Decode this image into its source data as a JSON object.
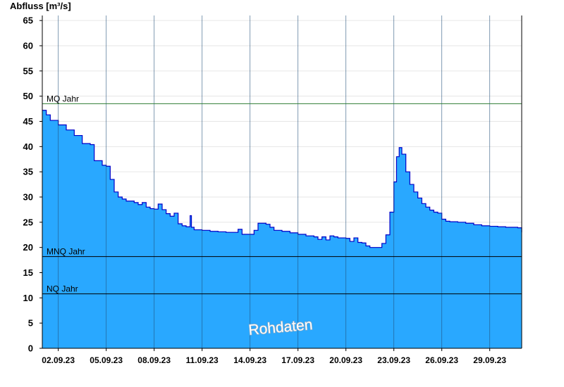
{
  "chart_data": {
    "type": "area",
    "ylabel": "Abfluss [m³/s]",
    "xlabel": "",
    "ylim": [
      0,
      66
    ],
    "yticks": [
      0,
      5,
      10,
      15,
      20,
      25,
      30,
      35,
      40,
      45,
      50,
      55,
      60,
      65
    ],
    "xlim": [
      "2023-09-01",
      "2023-10-01"
    ],
    "xticks": [
      "02.09.23",
      "05.09.23",
      "08.09.23",
      "11.09.23",
      "14.09.23",
      "17.09.23",
      "20.09.23",
      "23.09.23",
      "26.09.23",
      "29.09.23"
    ],
    "grid": true,
    "fill_color": "#29a8ff",
    "line_color": "#0000c8",
    "series": [
      {
        "values": [
          [
            "2023-09-01",
            47.2
          ],
          [
            "2023-09-01T06:00",
            46.3
          ],
          [
            "2023-09-01T12:00",
            45.2
          ],
          [
            "2023-09-02",
            44.3
          ],
          [
            "2023-09-02T12:00",
            43.3
          ],
          [
            "2023-09-03",
            42.2
          ],
          [
            "2023-09-03T12:00",
            40.6
          ],
          [
            "2023-09-04",
            40.4
          ],
          [
            "2023-09-04T06:00",
            37.2
          ],
          [
            "2023-09-04T18:00",
            36.3
          ],
          [
            "2023-09-05",
            36.1
          ],
          [
            "2023-09-05T06:00",
            33.5
          ],
          [
            "2023-09-05T12:00",
            31.0
          ],
          [
            "2023-09-05T18:00",
            30.0
          ],
          [
            "2023-09-06",
            29.6
          ],
          [
            "2023-09-06T06:00",
            29.2
          ],
          [
            "2023-09-06T12:00",
            29.2
          ],
          [
            "2023-09-06T18:00",
            28.9
          ],
          [
            "2023-09-07",
            28.5
          ],
          [
            "2023-09-07T06:00",
            28.9
          ],
          [
            "2023-09-07T12:00",
            28.0
          ],
          [
            "2023-09-07T18:00",
            27.7
          ],
          [
            "2023-09-08",
            27.6
          ],
          [
            "2023-09-08T06:00",
            28.6
          ],
          [
            "2023-09-08T12:00",
            27.5
          ],
          [
            "2023-09-08T18:00",
            26.7
          ],
          [
            "2023-09-09",
            26.2
          ],
          [
            "2023-09-09T06:00",
            26.8
          ],
          [
            "2023-09-09T12:00",
            24.7
          ],
          [
            "2023-09-09T18:00",
            24.3
          ],
          [
            "2023-09-10",
            24.1
          ],
          [
            "2023-09-10T06:00",
            26.3
          ],
          [
            "2023-09-10T08:00",
            24.0
          ],
          [
            "2023-09-10T12:00",
            23.5
          ],
          [
            "2023-09-11",
            23.4
          ],
          [
            "2023-09-11T12:00",
            23.2
          ],
          [
            "2023-09-12",
            23.1
          ],
          [
            "2023-09-12T12:00",
            23.0
          ],
          [
            "2023-09-13",
            23.0
          ],
          [
            "2023-09-13T06:00",
            23.6
          ],
          [
            "2023-09-13T12:00",
            22.6
          ],
          [
            "2023-09-14",
            22.6
          ],
          [
            "2023-09-14T06:00",
            23.4
          ],
          [
            "2023-09-14T12:00",
            24.8
          ],
          [
            "2023-09-15",
            24.6
          ],
          [
            "2023-09-15T06:00",
            24.0
          ],
          [
            "2023-09-15T12:00",
            23.4
          ],
          [
            "2023-09-16",
            23.2
          ],
          [
            "2023-09-16T12:00",
            22.9
          ],
          [
            "2023-09-17",
            22.6
          ],
          [
            "2023-09-17T12:00",
            22.3
          ],
          [
            "2023-09-18",
            22.1
          ],
          [
            "2023-09-18T06:00",
            21.6
          ],
          [
            "2023-09-18T12:00",
            22.1
          ],
          [
            "2023-09-18T18:00",
            21.5
          ],
          [
            "2023-09-19",
            22.3
          ],
          [
            "2023-09-19T06:00",
            22.1
          ],
          [
            "2023-09-19T12:00",
            21.9
          ],
          [
            "2023-09-20",
            21.8
          ],
          [
            "2023-09-20T06:00",
            21.2
          ],
          [
            "2023-09-20T12:00",
            21.9
          ],
          [
            "2023-09-20T18:00",
            21.0
          ],
          [
            "2023-09-21",
            20.9
          ],
          [
            "2023-09-21T06:00",
            20.3
          ],
          [
            "2023-09-21T12:00",
            20.0
          ],
          [
            "2023-09-22",
            20.0
          ],
          [
            "2023-09-22T06:00",
            20.8
          ],
          [
            "2023-09-22T12:00",
            22.5
          ],
          [
            "2023-09-22T18:00",
            27.0
          ],
          [
            "2023-09-23",
            33.0
          ],
          [
            "2023-09-23T04:00",
            38.0
          ],
          [
            "2023-09-23T08:00",
            39.8
          ],
          [
            "2023-09-23T12:00",
            38.5
          ],
          [
            "2023-09-23T18:00",
            35.0
          ],
          [
            "2023-09-24",
            32.5
          ],
          [
            "2023-09-24T06:00",
            31.0
          ],
          [
            "2023-09-24T12:00",
            29.8
          ],
          [
            "2023-09-24T18:00",
            28.7
          ],
          [
            "2023-09-25",
            28.0
          ],
          [
            "2023-09-25T06:00",
            27.4
          ],
          [
            "2023-09-25T12:00",
            27.0
          ],
          [
            "2023-09-25T18:00",
            26.8
          ],
          [
            "2023-09-26",
            25.6
          ],
          [
            "2023-09-26T06:00",
            25.2
          ],
          [
            "2023-09-26T12:00",
            25.1
          ],
          [
            "2023-09-27",
            25.0
          ],
          [
            "2023-09-27T12:00",
            24.8
          ],
          [
            "2023-09-28",
            24.5
          ],
          [
            "2023-09-28T12:00",
            24.3
          ],
          [
            "2023-09-29",
            24.2
          ],
          [
            "2023-09-29T12:00",
            24.1
          ],
          [
            "2023-09-30",
            24.0
          ],
          [
            "2023-09-30T18:00",
            23.9
          ],
          [
            "2023-10-01",
            23.0
          ]
        ]
      }
    ],
    "reference_lines": [
      {
        "label": "MQ Jahr",
        "value": 48.5,
        "color": "#2e7d32"
      },
      {
        "label": "MNQ Jahr",
        "value": 18.2,
        "color": "#000000"
      },
      {
        "label": "NQ Jahr",
        "value": 10.8,
        "color": "#000000"
      }
    ],
    "annotation": "Rohdaten"
  }
}
